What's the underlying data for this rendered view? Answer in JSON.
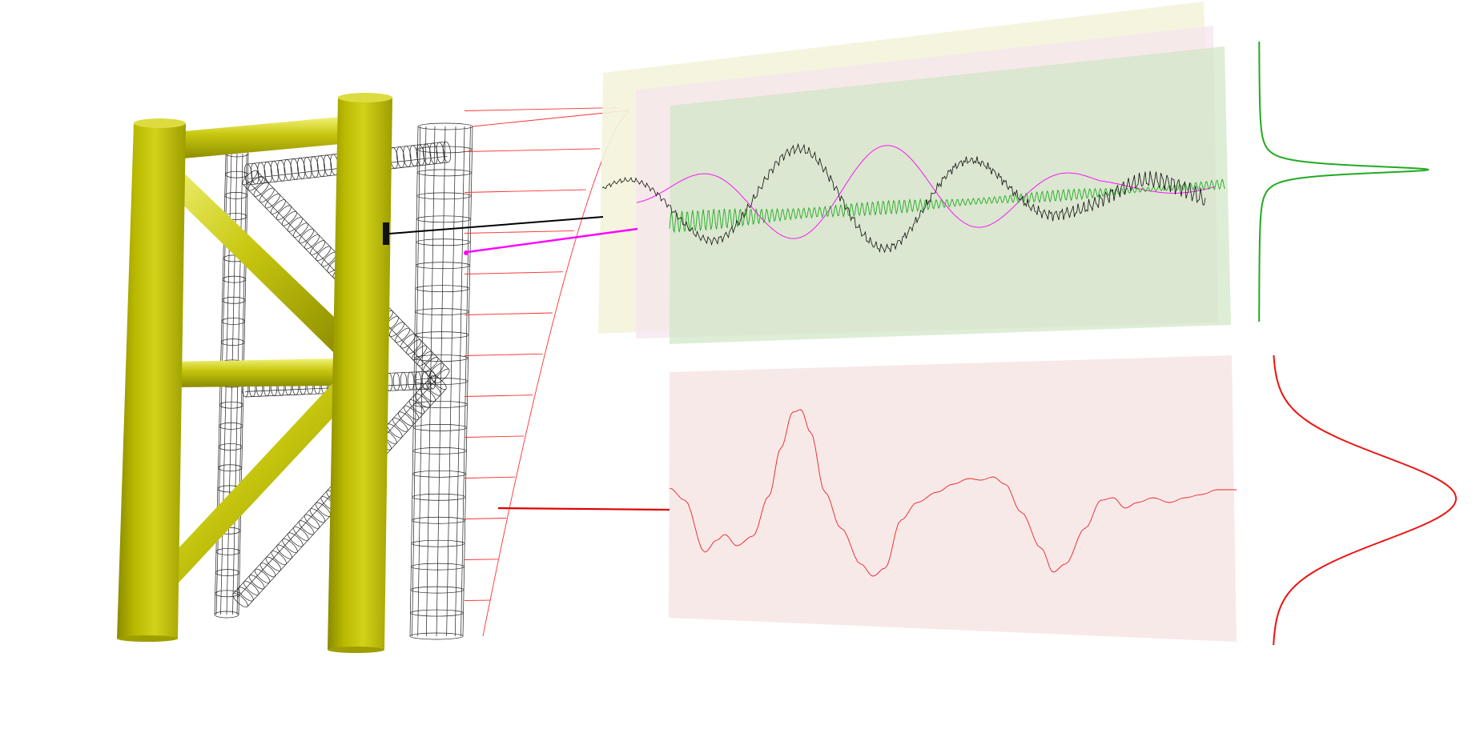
{
  "colors": {
    "leg_main": "#c2c20a",
    "leg_light": "#e8e860",
    "leg_dark": "#8a8a00",
    "wireframe": "#222222",
    "load_profile": "#ff3030",
    "signal_black": "#000000",
    "signal_magenta": "#ff00ff",
    "signal_green": "#22aa22",
    "signal_red": "#ee2222",
    "panel_yellow": "#f4f4dc",
    "panel_pink": "#f6e6ea",
    "panel_green": "#d8ecd0",
    "panel_red": "#f8e8e8",
    "pdf_green": "#22aa22",
    "pdf_red": "#ee1111"
  },
  "markers": {
    "sensor_black": "black-sensor-marker",
    "sensor_magenta": "magenta-sensor-marker"
  }
}
